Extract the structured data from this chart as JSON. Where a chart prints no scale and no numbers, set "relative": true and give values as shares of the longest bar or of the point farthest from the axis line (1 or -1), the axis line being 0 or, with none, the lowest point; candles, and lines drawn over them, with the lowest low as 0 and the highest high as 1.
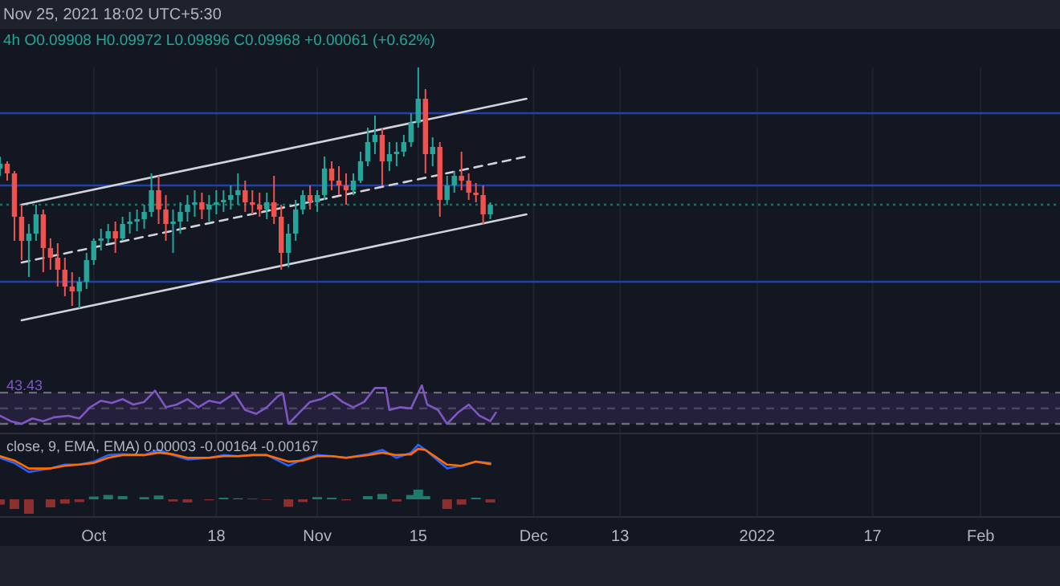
{
  "chart_data": [
    {
      "type": "candlestick",
      "title": "Nov 25, 2021 18:02 UTC+5:30",
      "subtitle": "4h  O0.09908 H0.09972 L0.09896 C0.09968 +0.00061 (+0.62%)",
      "relative": true,
      "grid": "x",
      "tick_labels": false,
      "colors": [
        "#26a69a",
        "#ef5350",
        "#ef5350",
        "#ef5350",
        "#26a69a",
        "#26a69a",
        "#ef5350",
        "#ef5350",
        "#ef5350",
        "#ef5350",
        "#ef5350",
        "#26a69a",
        "#26a69a",
        "#26a69a",
        "#26a69a",
        "#26a69a",
        "#ef5350",
        "#26a69a",
        "#26a69a",
        "#26a69a",
        "#26a69a",
        "#26a69a",
        "#ef5350",
        "#ef5350",
        "#26a69a",
        "#26a69a",
        "#26a69a",
        "#26a69a",
        "#ef5350",
        "#26a69a",
        "#26a69a",
        "#26a69a",
        "#26a69a",
        "#26a69a",
        "#ef5350",
        "#ef5350",
        "#ef5350",
        "#26a69a",
        "#ef5350",
        "#ef5350",
        "#26a69a",
        "#26a69a",
        "#26a69a",
        "#ef5350",
        "#26a69a",
        "#26a69a",
        "#ef5350",
        "#ef5350",
        "#ef5350",
        "#26a69a",
        "#26a69a",
        "#26a69a",
        "#26a69a",
        "#ef5350",
        "#26a69a",
        "#26a69a",
        "#26a69a",
        "#26a69a",
        "#26a69a",
        "#ef5350",
        "#26a69a",
        "#ef5350",
        "#26a69a",
        "#26a69a",
        "#ef5350",
        "#ef5350",
        "#ef5350",
        "#ef5350",
        "#26a69a"
      ],
      "xlim": [
        "2021-09-18",
        "2022-02-12"
      ],
      "xticks": [
        {
          "value": "2021-10-01",
          "label": null
        },
        {
          "value": "2021-10-18",
          "label": null
        },
        {
          "value": "2021-11-01",
          "label": null
        },
        {
          "value": "2021-11-15",
          "label": null
        },
        {
          "value": "2021-12-01",
          "label": null
        },
        {
          "value": "2021-12-13",
          "label": null
        },
        {
          "value": "2022-01-01",
          "label": null
        },
        {
          "value": "2022-01-17",
          "label": null
        },
        {
          "value": "2022-02-01",
          "label": null
        }
      ],
      "x": [
        "2021-09-18",
        "2021-09-19",
        "2021-09-20",
        "2021-09-21",
        "2021-09-22",
        "2021-09-23",
        "2021-09-24",
        "2021-09-25",
        "2021-09-26",
        "2021-09-27",
        "2021-09-28",
        "2021-09-29",
        "2021-09-30",
        "2021-10-01",
        "2021-10-02",
        "2021-10-03",
        "2021-10-04",
        "2021-10-05",
        "2021-10-06",
        "2021-10-07",
        "2021-10-08",
        "2021-10-09",
        "2021-10-10",
        "2021-10-11",
        "2021-10-12",
        "2021-10-13",
        "2021-10-14",
        "2021-10-15",
        "2021-10-16",
        "2021-10-17",
        "2021-10-18",
        "2021-10-19",
        "2021-10-20",
        "2021-10-21",
        "2021-10-22",
        "2021-10-23",
        "2021-10-24",
        "2021-10-25",
        "2021-10-26",
        "2021-10-27",
        "2021-10-28",
        "2021-10-29",
        "2021-10-30",
        "2021-10-31",
        "2021-11-01",
        "2021-11-02",
        "2021-11-03",
        "2021-11-04",
        "2021-11-05",
        "2021-11-06",
        "2021-11-07",
        "2021-11-08",
        "2021-11-09",
        "2021-11-10",
        "2021-11-11",
        "2021-11-12",
        "2021-11-13",
        "2021-11-14",
        "2021-11-15",
        "2021-11-16",
        "2021-11-17",
        "2021-11-18",
        "2021-11-19",
        "2021-11-20",
        "2021-11-21",
        "2021-11-22",
        "2021-11-23",
        "2021-11-24",
        "2021-11-25"
      ],
      "ohlc": [
        [
          0.58,
          0.63,
          0.55,
          0.6
        ],
        [
          0.6,
          0.61,
          0.53,
          0.56
        ],
        [
          0.56,
          0.57,
          0.28,
          0.38
        ],
        [
          0.38,
          0.43,
          0.2,
          0.28
        ],
        [
          0.28,
          0.35,
          0.13,
          0.31
        ],
        [
          0.31,
          0.43,
          0.28,
          0.39
        ],
        [
          0.39,
          0.41,
          0.15,
          0.25
        ],
        [
          0.25,
          0.29,
          0.16,
          0.21
        ],
        [
          0.21,
          0.27,
          0.09,
          0.16
        ],
        [
          0.16,
          0.21,
          0.05,
          0.09
        ],
        [
          0.09,
          0.15,
          0.01,
          0.07
        ],
        [
          0.07,
          0.13,
          0,
          0.11
        ],
        [
          0.11,
          0.23,
          0.08,
          0.2
        ],
        [
          0.2,
          0.29,
          0.18,
          0.28
        ],
        [
          0.28,
          0.33,
          0.24,
          0.29
        ],
        [
          0.29,
          0.35,
          0.27,
          0.32
        ],
        [
          0.32,
          0.36,
          0.23,
          0.29
        ],
        [
          0.29,
          0.38,
          0.28,
          0.35
        ],
        [
          0.35,
          0.4,
          0.31,
          0.36
        ],
        [
          0.36,
          0.41,
          0.32,
          0.37
        ],
        [
          0.37,
          0.43,
          0.33,
          0.4
        ],
        [
          0.4,
          0.56,
          0.38,
          0.49
        ],
        [
          0.49,
          0.55,
          0.35,
          0.41
        ],
        [
          0.41,
          0.47,
          0.28,
          0.35
        ],
        [
          0.35,
          0.41,
          0.23,
          0.36
        ],
        [
          0.36,
          0.44,
          0.31,
          0.4
        ],
        [
          0.4,
          0.47,
          0.36,
          0.43
        ],
        [
          0.43,
          0.49,
          0.38,
          0.44
        ],
        [
          0.44,
          0.48,
          0.37,
          0.41
        ],
        [
          0.41,
          0.47,
          0.36,
          0.43
        ],
        [
          0.43,
          0.49,
          0.39,
          0.44
        ],
        [
          0.44,
          0.49,
          0.4,
          0.45
        ],
        [
          0.45,
          0.51,
          0.41,
          0.47
        ],
        [
          0.47,
          0.56,
          0.43,
          0.49
        ],
        [
          0.49,
          0.53,
          0.4,
          0.44
        ],
        [
          0.44,
          0.49,
          0.39,
          0.43
        ],
        [
          0.43,
          0.48,
          0.38,
          0.41
        ],
        [
          0.41,
          0.48,
          0.37,
          0.44
        ],
        [
          0.44,
          0.55,
          0.35,
          0.38
        ],
        [
          0.38,
          0.43,
          0.16,
          0.23
        ],
        [
          0.23,
          0.35,
          0.17,
          0.31
        ],
        [
          0.31,
          0.45,
          0.28,
          0.41
        ],
        [
          0.41,
          0.49,
          0.39,
          0.47
        ],
        [
          0.47,
          0.51,
          0.41,
          0.44
        ],
        [
          0.44,
          0.49,
          0.4,
          0.47
        ],
        [
          0.47,
          0.63,
          0.45,
          0.58
        ],
        [
          0.58,
          0.61,
          0.49,
          0.53
        ],
        [
          0.53,
          0.59,
          0.47,
          0.51
        ],
        [
          0.51,
          0.56,
          0.43,
          0.49
        ],
        [
          0.49,
          0.56,
          0.47,
          0.53
        ],
        [
          0.53,
          0.65,
          0.52,
          0.61
        ],
        [
          0.61,
          0.75,
          0.59,
          0.69
        ],
        [
          0.69,
          0.8,
          0.64,
          0.72
        ],
        [
          0.72,
          0.75,
          0.51,
          0.61
        ],
        [
          0.61,
          0.69,
          0.57,
          0.64
        ],
        [
          0.64,
          0.69,
          0.59,
          0.65
        ],
        [
          0.65,
          0.72,
          0.63,
          0.69
        ],
        [
          0.69,
          0.81,
          0.67,
          0.77
        ],
        [
          0.77,
          1,
          0.75,
          0.87
        ],
        [
          0.87,
          0.91,
          0.56,
          0.64
        ],
        [
          0.64,
          0.71,
          0.59,
          0.67
        ],
        [
          0.67,
          0.69,
          0.38,
          0.45
        ],
        [
          0.45,
          0.55,
          0.43,
          0.51
        ],
        [
          0.51,
          0.57,
          0.48,
          0.55
        ],
        [
          0.55,
          0.65,
          0.49,
          0.53
        ],
        [
          0.53,
          0.56,
          0.45,
          0.48
        ],
        [
          0.48,
          0.52,
          0.44,
          0.47
        ],
        [
          0.47,
          0.51,
          0.35,
          0.39
        ],
        [
          0.39,
          0.44,
          0.37,
          0.43
        ]
      ],
      "series": [
        {
          "type": "line",
          "color": "#d1d4dc",
          "line_style": "solid",
          "x": [
            "2021-09-21",
            "2021-11-30"
          ],
          "values": [
            0.43,
            0.87
          ]
        },
        {
          "type": "line",
          "color": "#d1d4dc",
          "line_style": "dashed",
          "x": [
            "2021-09-21",
            "2021-11-30"
          ],
          "values": [
            0.19,
            0.63
          ]
        },
        {
          "type": "line",
          "color": "#d1d4dc",
          "line_style": "solid",
          "x": [
            "2021-09-21",
            "2021-11-30"
          ],
          "values": [
            -0.05,
            0.39
          ]
        }
      ],
      "ref_lines": [
        {
          "axis": "y",
          "value": 0.81,
          "color": "#2140a8",
          "line_style": "solid"
        },
        {
          "axis": "y",
          "value": 0.51,
          "color": "#2140a8",
          "line_style": "solid"
        },
        {
          "axis": "y",
          "value": 0.11,
          "color": "#2140a8",
          "line_style": "solid"
        },
        {
          "axis": "y",
          "value": 0.43,
          "color": "#1f6f66",
          "line_style": "dotted"
        }
      ]
    },
    {
      "type": "line",
      "relative": true,
      "grid": "x",
      "tick_labels": false,
      "annotations": [
        "43.43"
      ],
      "xlim": [
        "2021-09-18",
        "2022-02-12"
      ],
      "xticks": [
        {
          "value": "2021-10-01",
          "label": null
        },
        {
          "value": "2021-10-18",
          "label": null
        },
        {
          "value": "2021-11-01",
          "label": null
        },
        {
          "value": "2021-11-15",
          "label": null
        },
        {
          "value": "2021-12-01",
          "label": null
        },
        {
          "value": "2021-12-13",
          "label": null
        },
        {
          "value": "2022-01-01",
          "label": null
        },
        {
          "value": "2022-01-17",
          "label": null
        },
        {
          "value": "2022-02-01",
          "label": null
        }
      ],
      "x": [
        "2021-09-18",
        "2021-09-19T12:00",
        "2021-09-21",
        "2021-09-22T12:00",
        "2021-09-24",
        "2021-09-25T12:00",
        "2021-09-27T12:00",
        "2021-09-29",
        "2021-09-30T12:00",
        "2021-10-02",
        "2021-10-03T12:00",
        "2021-10-05",
        "2021-10-06T12:00",
        "2021-10-08",
        "2021-10-09T12:00",
        "2021-10-11",
        "2021-10-12T12:00",
        "2021-10-14",
        "2021-10-15T12:00",
        "2021-10-17",
        "2021-10-18T12:00",
        "2021-10-20T12:00",
        "2021-10-22",
        "2021-10-23T12:00",
        "2021-10-25",
        "2021-10-26T12:00",
        "2021-10-27T06:00",
        "2021-10-28",
        "2021-10-29T12:00",
        "2021-10-31",
        "2021-11-01T12:00",
        "2021-11-03",
        "2021-11-04T12:00",
        "2021-11-06",
        "2021-11-07T12:00",
        "2021-11-09",
        "2021-11-10T12:00",
        "2021-11-11",
        "2021-11-12T12:00",
        "2021-11-14",
        "2021-11-15T12:00",
        "2021-11-16T06:00",
        "2021-11-17T18:00",
        "2021-11-19",
        "2021-11-20T12:00",
        "2021-11-22",
        "2021-11-23T12:00",
        "2021-11-25",
        "2021-11-25T18:00"
      ],
      "series": [
        {
          "color": "#7e57c2",
          "values": [
            0.21,
            0.07,
            0,
            0.14,
            0.07,
            0.17,
            0.21,
            0.14,
            0.43,
            0.6,
            0.54,
            0.64,
            0.5,
            0.57,
            0.86,
            0.43,
            0.5,
            0.64,
            0.43,
            0.6,
            0.54,
            0.79,
            0.36,
            0.26,
            0.43,
            0.71,
            0.79,
            0,
            0.29,
            0.57,
            0.64,
            0.79,
            0.57,
            0.43,
            0.57,
            0.93,
            0.93,
            0.36,
            0.43,
            0.4,
            1,
            0.5,
            0.36,
            0,
            0.29,
            0.5,
            0.21,
            0.07,
            0.29
          ]
        }
      ],
      "bands": [
        {
          "axis": "y",
          "from": 0,
          "to": 0.81,
          "color": "#241f3a"
        }
      ],
      "ref_lines": [
        {
          "axis": "y",
          "value": 0,
          "color": "#6a6d78",
          "line_style": "dashed"
        },
        {
          "axis": "y",
          "value": 0.4,
          "color": "#4a4660",
          "line_style": "dashed"
        },
        {
          "axis": "y",
          "value": 0.81,
          "color": "#6a6d78",
          "line_style": "dashed"
        }
      ]
    },
    {
      "type": "line",
      "relative": true,
      "grid": "x",
      "tick_labels": false,
      "annotations": [
        "close, 9, EMA, EMA) 0.00003 -0.00164 -0.00167"
      ],
      "xlim": [
        "2021-09-18",
        "2022-02-12"
      ],
      "xticks": [
        {
          "value": "2021-10-01",
          "label": null
        },
        {
          "value": "2021-10-18",
          "label": null
        },
        {
          "value": "2021-11-01",
          "label": null
        },
        {
          "value": "2021-11-15",
          "label": null
        },
        {
          "value": "2021-12-01",
          "label": null
        },
        {
          "value": "2021-12-13",
          "label": null
        },
        {
          "value": "2022-01-01",
          "label": null
        },
        {
          "value": "2022-01-17",
          "label": null
        },
        {
          "value": "2022-02-01",
          "label": null
        }
      ],
      "x": [
        "2021-09-18",
        "2021-09-20",
        "2021-09-22",
        "2021-09-25",
        "2021-09-27",
        "2021-09-29",
        "2021-10-01",
        "2021-10-03",
        "2021-10-05",
        "2021-10-08",
        "2021-10-10",
        "2021-10-12",
        "2021-10-14",
        "2021-10-17",
        "2021-10-19",
        "2021-10-21",
        "2021-10-23",
        "2021-10-25",
        "2021-10-28",
        "2021-10-30",
        "2021-11-01",
        "2021-11-03",
        "2021-11-05",
        "2021-11-08",
        "2021-11-10",
        "2021-11-12",
        "2021-11-14",
        "2021-11-15",
        "2021-11-16",
        "2021-11-19",
        "2021-11-21",
        "2021-11-23",
        "2021-11-25"
      ],
      "series": [
        {
          "color": "#2962ff",
          "values": [
            0.52,
            0.33,
            0,
            0.13,
            0.27,
            0.27,
            0.38,
            0.62,
            0.65,
            0.62,
            0.81,
            0.62,
            0.46,
            0.52,
            0.62,
            0.58,
            0.62,
            0.62,
            0.23,
            0.46,
            0.62,
            0.58,
            0.52,
            0.65,
            0.81,
            0.52,
            0.71,
            1,
            0.81,
            0.13,
            0.23,
            0.38,
            0.33
          ]
        },
        {
          "color": "#ff6d00",
          "values": [
            0.58,
            0.42,
            0.13,
            0.13,
            0.23,
            0.27,
            0.33,
            0.52,
            0.62,
            0.62,
            0.71,
            0.65,
            0.52,
            0.52,
            0.58,
            0.58,
            0.62,
            0.62,
            0.38,
            0.42,
            0.58,
            0.58,
            0.52,
            0.62,
            0.71,
            0.62,
            0.65,
            0.85,
            0.81,
            0.27,
            0.23,
            0.38,
            0.29
          ]
        }
      ]
    },
    {
      "type": "bar",
      "relative": true,
      "grid": "x",
      "tick_labels": "x",
      "xlim": [
        "2021-09-18",
        "2022-02-12"
      ],
      "xticks": [
        {
          "value": "2021-10-01",
          "label": "Oct"
        },
        {
          "value": "2021-10-18",
          "label": "18"
        },
        {
          "value": "2021-11-01",
          "label": "Nov"
        },
        {
          "value": "2021-11-15",
          "label": "15"
        },
        {
          "value": "2021-12-01",
          "label": "Dec"
        },
        {
          "value": "2021-12-13",
          "label": "13"
        },
        {
          "value": "2022-01-01",
          "label": "2022"
        },
        {
          "value": "2022-01-17",
          "label": "17"
        },
        {
          "value": "2022-02-01",
          "label": "Feb"
        }
      ],
      "x": [
        "2021-09-18",
        "2021-09-20",
        "2021-09-22",
        "2021-09-25",
        "2021-09-27",
        "2021-09-29",
        "2021-10-01",
        "2021-10-03",
        "2021-10-05",
        "2021-10-08",
        "2021-10-10",
        "2021-10-12",
        "2021-10-14",
        "2021-10-17",
        "2021-10-19",
        "2021-10-21",
        "2021-10-23",
        "2021-10-25",
        "2021-10-28",
        "2021-10-30",
        "2021-11-01",
        "2021-11-03",
        "2021-11-05",
        "2021-11-08",
        "2021-11-10",
        "2021-11-12",
        "2021-11-14",
        "2021-11-15",
        "2021-11-16",
        "2021-11-19",
        "2021-11-21",
        "2021-11-23",
        "2021-11-25"
      ],
      "values": [
        -0.37,
        -0.67,
        -1,
        -0.56,
        -0.3,
        -0.19,
        0.19,
        0.3,
        0.22,
        0.15,
        0.26,
        -0.15,
        -0.22,
        -0.07,
        0.11,
        0.07,
        0.04,
        -0.04,
        -0.52,
        -0.19,
        0.15,
        0.11,
        -0.07,
        0.22,
        0.37,
        -0.15,
        0.3,
        0.67,
        0.22,
        -0.67,
        -0.37,
        0.11,
        -0.22
      ],
      "colors": [
        "#8c2f2f",
        "#8c2f2f",
        "#8c2f2f",
        "#8c2f2f",
        "#8c2f2f",
        "#8c2f2f",
        "#1f7a6e",
        "#1f7a6e",
        "#1f7a6e",
        "#1f7a6e",
        "#1f7a6e",
        "#8c2f2f",
        "#8c2f2f",
        "#8c2f2f",
        "#1f7a6e",
        "#1f7a6e",
        "#1f7a6e",
        "#8c2f2f",
        "#8c2f2f",
        "#8c2f2f",
        "#1f7a6e",
        "#1f7a6e",
        "#8c2f2f",
        "#1f7a6e",
        "#1f7a6e",
        "#8c2f2f",
        "#1f7a6e",
        "#1f7a6e",
        "#1f7a6e",
        "#8c2f2f",
        "#8c2f2f",
        "#1f7a6e",
        "#8c2f2f"
      ]
    }
  ]
}
